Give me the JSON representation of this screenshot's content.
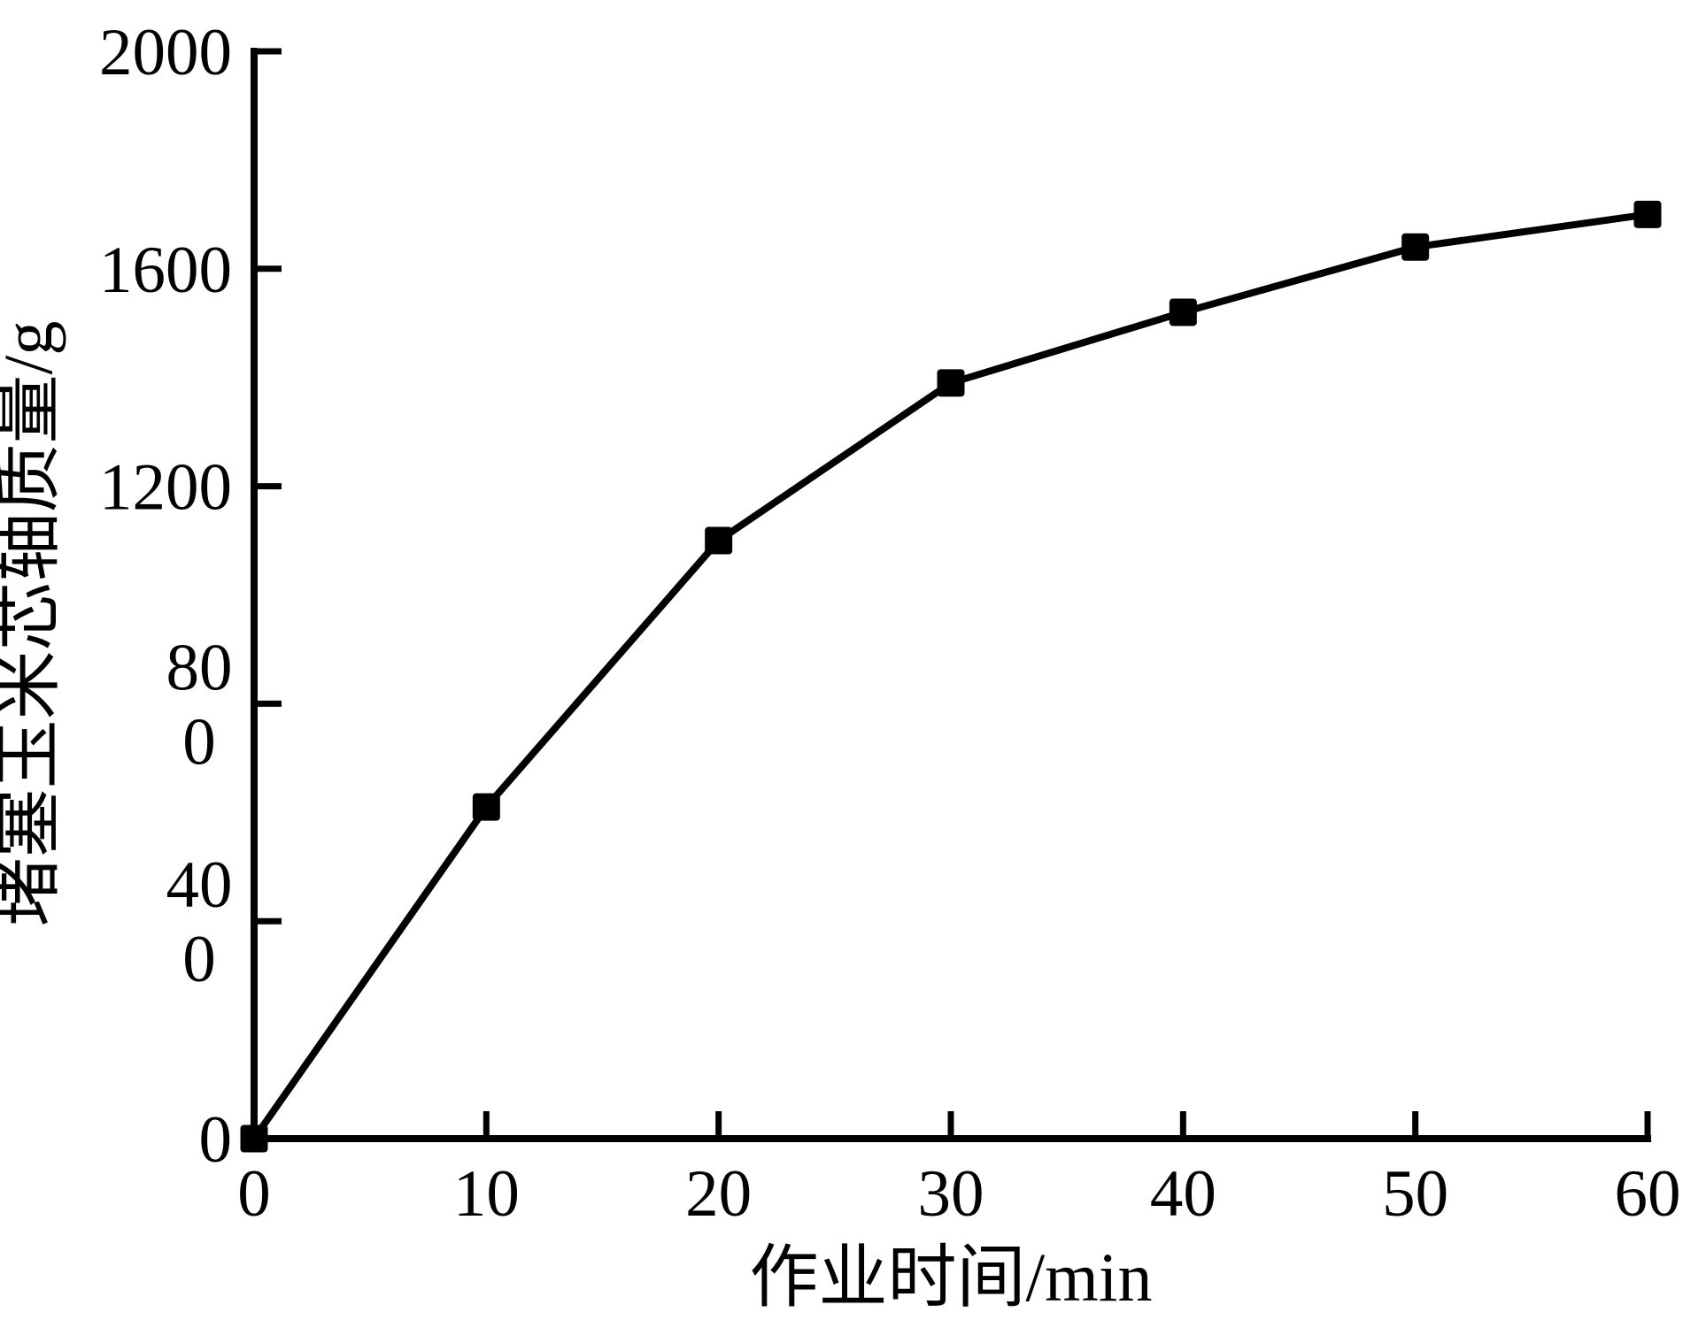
{
  "page": {
    "background_color": "#ffffff",
    "foreground_color": "#000000"
  },
  "chart_data": {
    "type": "line",
    "title": "",
    "xlabel": "作业时间/min",
    "ylabel": "堵塞玉米芯轴质量/g",
    "x": [
      0,
      10,
      20,
      30,
      40,
      50,
      60
    ],
    "y": [
      0,
      610,
      1100,
      1390,
      1520,
      1640,
      1700
    ],
    "xlim": [
      0,
      60
    ],
    "ylim": [
      0,
      2000
    ],
    "xticks": {
      "values": [
        0,
        10,
        20,
        30,
        40,
        50,
        60
      ],
      "labels": [
        [
          "0"
        ],
        [
          "10"
        ],
        [
          "20"
        ],
        [
          "30"
        ],
        [
          "40"
        ],
        [
          "50"
        ],
        [
          "60"
        ]
      ]
    },
    "yticks": {
      "values": [
        0,
        400,
        800,
        1200,
        1600,
        2000
      ],
      "labels": [
        [
          "0"
        ],
        [
          "40",
          "0"
        ],
        [
          "80",
          "0"
        ],
        [
          "1200"
        ],
        [
          "1600"
        ],
        [
          "2000"
        ]
      ]
    },
    "grid": false,
    "legend": "none",
    "line_color": "#000000",
    "marker": "filled-square",
    "marker_color": "#000000",
    "axis_color": "#000000",
    "tick_direction": "in",
    "spines": [
      "left",
      "bottom"
    ]
  }
}
